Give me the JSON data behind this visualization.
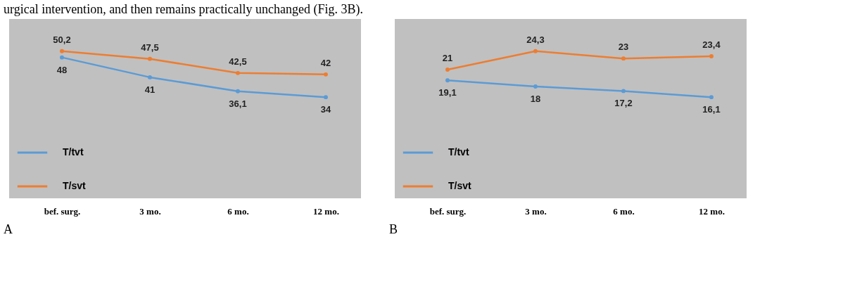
{
  "chart_data": [
    {
      "type": "line",
      "categories": [
        "bef. surg.",
        "3 mo.",
        "6 mo.",
        "12 mo."
      ],
      "series": [
        {
          "name": "T/tvt",
          "color": "#5b9bd5",
          "values": [
            48,
            41,
            36.1,
            34
          ],
          "value_labels": [
            "48",
            "41",
            "36,1",
            "34"
          ]
        },
        {
          "name": "T/svt",
          "color": "#ed7d31",
          "values": [
            50.2,
            47.5,
            42.5,
            42
          ],
          "value_labels": [
            "50,2",
            "47,5",
            "42,5",
            "42"
          ]
        }
      ],
      "marker": "circle",
      "legend": "bottom left",
      "grid": false,
      "tick_labels": "x",
      "annotations": [
        "urgical intervention, and then remains practically unchanged (Fig. 3B).",
        "A"
      ]
    },
    {
      "type": "line",
      "categories": [
        "bef. surg.",
        "3 mo.",
        "6 mo.",
        "12 mo."
      ],
      "series": [
        {
          "name": "T/tvt",
          "color": "#5b9bd5",
          "values": [
            19.1,
            18,
            17.2,
            16.1
          ],
          "value_labels": [
            "19,1",
            "18",
            "17,2",
            "16,1"
          ]
        },
        {
          "name": "T/svt",
          "color": "#ed7d31",
          "values": [
            21,
            24.3,
            23,
            23.4
          ],
          "value_labels": [
            "21",
            "24,3",
            "23",
            "23,4"
          ]
        }
      ],
      "marker": "circle",
      "legend": "bottom left",
      "grid": false,
      "tick_labels": "x",
      "annotations": [
        "B"
      ]
    }
  ]
}
